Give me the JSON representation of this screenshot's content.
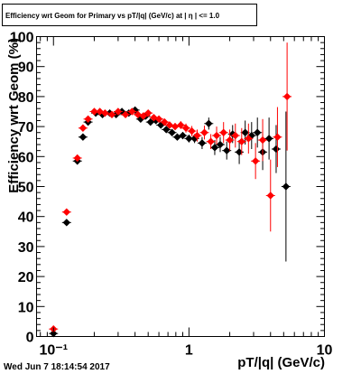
{
  "chart_data": {
    "type": "scatter",
    "title": "Efficiency wrt Geom for Primary vs pT/|q| (GeV/c) at | η | <= 1.0",
    "xlabel": "pT/|q| (GeV/c)",
    "ylabel": "Efficiency wrt Geom (%)",
    "x_scale": "log",
    "xlim": [
      0.075,
      10
    ],
    "ylim": [
      0,
      100
    ],
    "grid": false,
    "y_ticks": [
      "0",
      "10",
      "20",
      "30",
      "40",
      "50",
      "60",
      "70",
      "80",
      "90",
      "100"
    ],
    "x_ticks": [
      "10⁻¹",
      "1",
      "10"
    ],
    "series": [
      {
        "color": "#000000",
        "marker": "diamond",
        "points": [
          {
            "x": 0.1,
            "y": 1,
            "err": 1
          },
          {
            "x": 0.125,
            "y": 38,
            "err": 0.5
          },
          {
            "x": 0.15,
            "y": 58.5,
            "err": 0.5
          },
          {
            "x": 0.165,
            "y": 66.5,
            "err": 0.5
          },
          {
            "x": 0.18,
            "y": 71.5,
            "err": 0.5
          },
          {
            "x": 0.205,
            "y": 74.5,
            "err": 0.5
          },
          {
            "x": 0.23,
            "y": 74,
            "err": 0.5
          },
          {
            "x": 0.26,
            "y": 74.5,
            "err": 0.5
          },
          {
            "x": 0.29,
            "y": 74,
            "err": 0.5
          },
          {
            "x": 0.32,
            "y": 75,
            "err": 0.5
          },
          {
            "x": 0.36,
            "y": 74.5,
            "err": 0.5
          },
          {
            "x": 0.4,
            "y": 75.5,
            "err": 0.5
          },
          {
            "x": 0.44,
            "y": 72.5,
            "err": 0.5
          },
          {
            "x": 0.48,
            "y": 73.5,
            "err": 0.5
          },
          {
            "x": 0.52,
            "y": 71.5,
            "err": 0.5
          },
          {
            "x": 0.57,
            "y": 72,
            "err": 0.5
          },
          {
            "x": 0.62,
            "y": 70.5,
            "err": 0.7
          },
          {
            "x": 0.68,
            "y": 69,
            "err": 0.8
          },
          {
            "x": 0.75,
            "y": 68,
            "err": 0.8
          },
          {
            "x": 0.82,
            "y": 66.5,
            "err": 1
          },
          {
            "x": 0.9,
            "y": 67,
            "err": 1.2
          },
          {
            "x": 1.0,
            "y": 66,
            "err": 1.3
          },
          {
            "x": 1.1,
            "y": 66,
            "err": 1.5
          },
          {
            "x": 1.25,
            "y": 64.5,
            "err": 2
          },
          {
            "x": 1.4,
            "y": 71,
            "err": 2
          },
          {
            "x": 1.55,
            "y": 63,
            "err": 2.5
          },
          {
            "x": 1.7,
            "y": 64,
            "err": 2.5
          },
          {
            "x": 1.9,
            "y": 62,
            "err": 3
          },
          {
            "x": 2.1,
            "y": 67.5,
            "err": 3
          },
          {
            "x": 2.35,
            "y": 61.5,
            "err": 4
          },
          {
            "x": 2.6,
            "y": 68,
            "err": 4
          },
          {
            "x": 2.9,
            "y": 67,
            "err": 4.5
          },
          {
            "x": 3.2,
            "y": 68,
            "err": 5
          },
          {
            "x": 3.5,
            "y": 61.5,
            "err": 6
          },
          {
            "x": 3.9,
            "y": 66,
            "err": 7
          },
          {
            "x": 4.4,
            "y": 62.5,
            "err": 8
          },
          {
            "x": 5.2,
            "y": 50,
            "err": 25
          }
        ]
      },
      {
        "color": "#ff0000",
        "marker": "diamond",
        "points": [
          {
            "x": 0.1,
            "y": 2.5,
            "err": 1
          },
          {
            "x": 0.125,
            "y": 41.5,
            "err": 0.5
          },
          {
            "x": 0.15,
            "y": 59.5,
            "err": 0.5
          },
          {
            "x": 0.165,
            "y": 69.5,
            "err": 0.5
          },
          {
            "x": 0.18,
            "y": 72.5,
            "err": 0.5
          },
          {
            "x": 0.2,
            "y": 75,
            "err": 0.5
          },
          {
            "x": 0.22,
            "y": 75,
            "err": 0.5
          },
          {
            "x": 0.24,
            "y": 74.5,
            "err": 0.5
          },
          {
            "x": 0.27,
            "y": 74,
            "err": 0.5
          },
          {
            "x": 0.3,
            "y": 75,
            "err": 0.5
          },
          {
            "x": 0.34,
            "y": 74,
            "err": 0.5
          },
          {
            "x": 0.38,
            "y": 75,
            "err": 0.5
          },
          {
            "x": 0.42,
            "y": 74,
            "err": 0.5
          },
          {
            "x": 0.46,
            "y": 73.5,
            "err": 0.5
          },
          {
            "x": 0.5,
            "y": 74.5,
            "err": 0.6
          },
          {
            "x": 0.55,
            "y": 73,
            "err": 0.7
          },
          {
            "x": 0.6,
            "y": 72.5,
            "err": 0.8
          },
          {
            "x": 0.66,
            "y": 71.5,
            "err": 0.9
          },
          {
            "x": 0.72,
            "y": 70.5,
            "err": 1
          },
          {
            "x": 0.79,
            "y": 70,
            "err": 1.2
          },
          {
            "x": 0.87,
            "y": 70.5,
            "err": 1.3
          },
          {
            "x": 0.95,
            "y": 69.5,
            "err": 1.5
          },
          {
            "x": 1.05,
            "y": 68.5,
            "err": 1.7
          },
          {
            "x": 1.15,
            "y": 67,
            "err": 2
          },
          {
            "x": 1.3,
            "y": 68,
            "err": 2.3
          },
          {
            "x": 1.45,
            "y": 65,
            "err": 2.5
          },
          {
            "x": 1.6,
            "y": 67,
            "err": 3
          },
          {
            "x": 1.8,
            "y": 68,
            "err": 3.5
          },
          {
            "x": 2.0,
            "y": 65.5,
            "err": 3.5
          },
          {
            "x": 2.2,
            "y": 67,
            "err": 4
          },
          {
            "x": 2.45,
            "y": 65,
            "err": 4.5
          },
          {
            "x": 2.75,
            "y": 66,
            "err": 5
          },
          {
            "x": 3.1,
            "y": 58.5,
            "err": 6
          },
          {
            "x": 3.5,
            "y": 65.5,
            "err": 7
          },
          {
            "x": 4.0,
            "y": 47,
            "err": 12
          },
          {
            "x": 4.5,
            "y": 66.5,
            "err": 10
          },
          {
            "x": 5.3,
            "y": 80,
            "err": 18
          }
        ]
      }
    ]
  },
  "footer": {
    "timestamp": "Wed Jun  7 18:14:54 2017"
  }
}
